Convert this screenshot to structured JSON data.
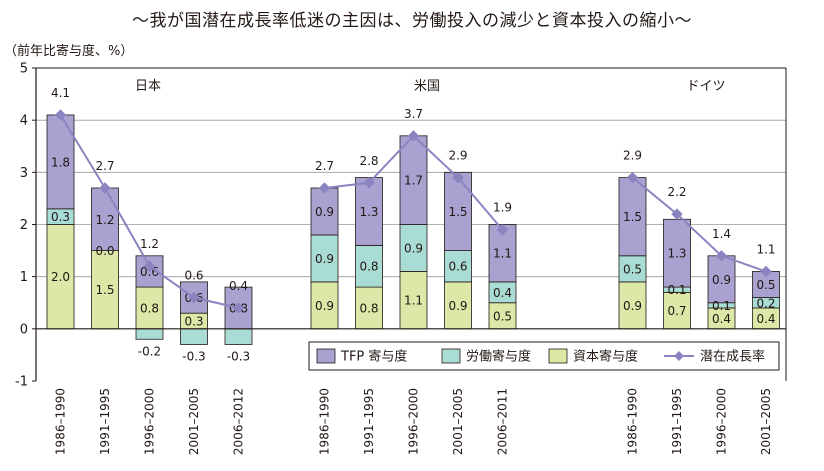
{
  "title": "～我が国潜在成長率低迷の主因は、労働投入の減少と資本投入の縮小～",
  "chart_data": {
    "type": "bar",
    "ylabel": "（前年比寄与度、%）",
    "ylim": [
      -1,
      5
    ],
    "yticks": [
      -1,
      0,
      1,
      2,
      3,
      4,
      5
    ],
    "grid": true,
    "legend_position": "bottom-right",
    "colors": {
      "tfp": "#a9a2d1",
      "labor": "#a9dcd4",
      "capital": "#dbe8a7",
      "line": "#8a84c0",
      "axis": "#231815"
    },
    "series": [
      {
        "name": "TFP 寄与度",
        "key": "tfp"
      },
      {
        "name": "労働寄与度",
        "key": "labor"
      },
      {
        "name": "資本寄与度",
        "key": "capital"
      },
      {
        "name": "潜在成長率",
        "key": "total"
      }
    ],
    "panels": [
      {
        "country": "日本",
        "periods": [
          {
            "label": "1986–1990",
            "capital": 2.0,
            "labor": 0.3,
            "tfp": 1.8,
            "total": 4.1,
            "capital_label": "2.0",
            "labor_label": "0.3",
            "tfp_label": "1.8",
            "total_label": "4.1"
          },
          {
            "label": "1991–1995",
            "capital": 1.5,
            "labor": 0.0,
            "tfp": 1.2,
            "total": 2.7,
            "capital_label": "1.5",
            "labor_label": "0.0",
            "tfp_label": "1.2",
            "total_label": "2.7"
          },
          {
            "label": "1996–2000",
            "capital": 0.8,
            "labor": -0.2,
            "tfp": 0.6,
            "total": 1.2,
            "capital_label": "0.8",
            "labor_label": "-0.2",
            "tfp_label": "0.6",
            "total_label": "1.2"
          },
          {
            "label": "2001–2005",
            "capital": 0.3,
            "labor": -0.3,
            "tfp": 0.6,
            "total": 0.6,
            "capital_label": "0.3",
            "labor_label": "-0.3",
            "tfp_label": "0.6",
            "total_label": "0.6"
          },
          {
            "label": "2006–2012",
            "capital": 0.0,
            "labor": -0.3,
            "tfp": 0.8,
            "total": 0.4,
            "capital_label": "",
            "labor_label": "-0.3",
            "tfp_label": "0.8",
            "total_label": "0.4"
          }
        ]
      },
      {
        "country": "米国",
        "periods": [
          {
            "label": "1986–1990",
            "capital": 0.9,
            "labor": 0.9,
            "tfp": 0.9,
            "total": 2.7,
            "capital_label": "0.9",
            "labor_label": "0.9",
            "tfp_label": "0.9",
            "total_label": "2.7"
          },
          {
            "label": "1991–1995",
            "capital": 0.8,
            "labor": 0.8,
            "tfp": 1.3,
            "total": 2.8,
            "capital_label": "0.8",
            "labor_label": "0.8",
            "tfp_label": "1.3",
            "total_label": "2.8"
          },
          {
            "label": "1996–2000",
            "capital": 1.1,
            "labor": 0.9,
            "tfp": 1.7,
            "total": 3.7,
            "capital_label": "1.1",
            "labor_label": "0.9",
            "tfp_label": "1.7",
            "total_label": "3.7"
          },
          {
            "label": "2001–2005",
            "capital": 0.9,
            "labor": 0.6,
            "tfp": 1.5,
            "total": 2.9,
            "capital_label": "0.9",
            "labor_label": "0.6",
            "tfp_label": "1.5",
            "total_label": "2.9"
          },
          {
            "label": "2006–2011",
            "capital": 0.5,
            "labor": 0.4,
            "tfp": 1.1,
            "total": 1.9,
            "capital_label": "0.5",
            "labor_label": "0.4",
            "tfp_label": "1.1",
            "total_label": "1.9"
          }
        ]
      },
      {
        "country": "ドイツ",
        "periods": [
          {
            "label": "1986–1990",
            "capital": 0.9,
            "labor": 0.5,
            "tfp": 1.5,
            "total": 2.9,
            "capital_label": "0.9",
            "labor_label": "0.5",
            "tfp_label": "1.5",
            "total_label": "2.9"
          },
          {
            "label": "1991–1995",
            "capital": 0.7,
            "labor": 0.1,
            "tfp": 1.3,
            "total": 2.2,
            "capital_label": "0.7",
            "labor_label": "0.1",
            "tfp_label": "1.3",
            "total_label": "2.2"
          },
          {
            "label": "1996–2000",
            "capital": 0.4,
            "labor": 0.1,
            "tfp": 0.9,
            "total": 1.4,
            "capital_label": "0.4",
            "labor_label": "0.1",
            "tfp_label": "0.9",
            "total_label": "1.4"
          },
          {
            "label": "2001–2005",
            "capital": 0.4,
            "labor": 0.2,
            "tfp": 0.5,
            "total": 1.1,
            "capital_label": "0.4",
            "labor_label": "0.2",
            "tfp_label": "0.5",
            "total_label": "1.1"
          }
        ]
      }
    ]
  }
}
